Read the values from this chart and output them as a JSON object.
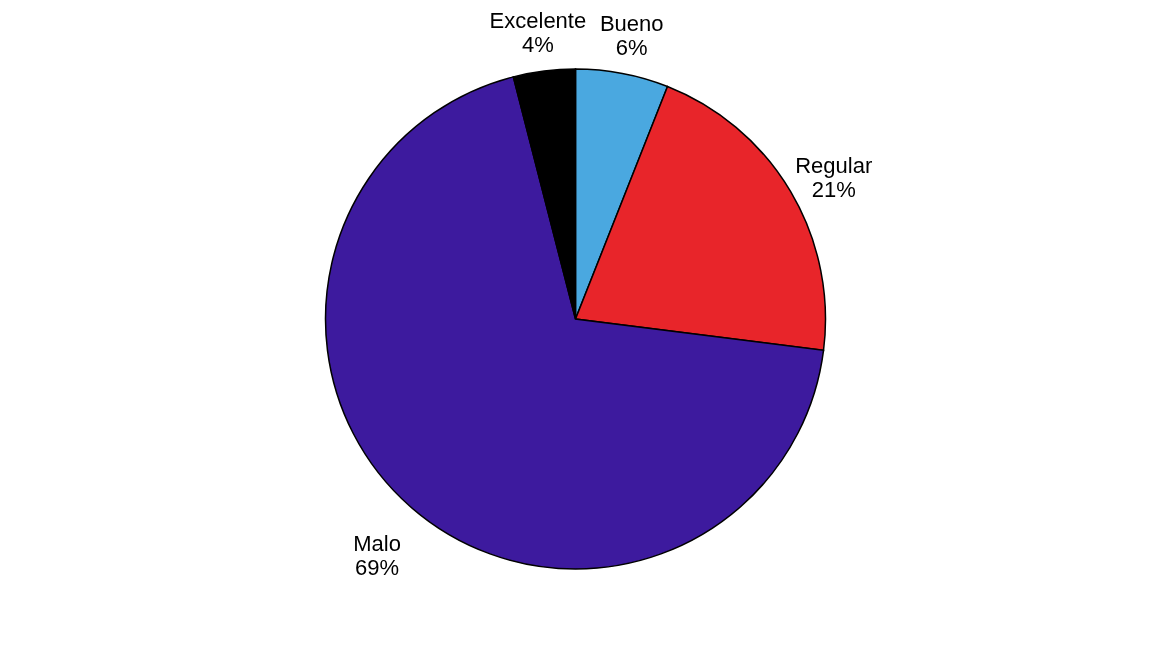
{
  "chart_data": {
    "type": "pie",
    "categories": [
      "Bueno",
      "Regular",
      "Malo",
      "Excelente"
    ],
    "values": [
      6,
      21,
      69,
      4
    ],
    "value_labels": [
      "6%",
      "21%",
      "69%",
      "4%"
    ],
    "colors": [
      "#4aa8e0",
      "#e8252a",
      "#3d1a9e",
      "#000000"
    ],
    "legend": false
  }
}
